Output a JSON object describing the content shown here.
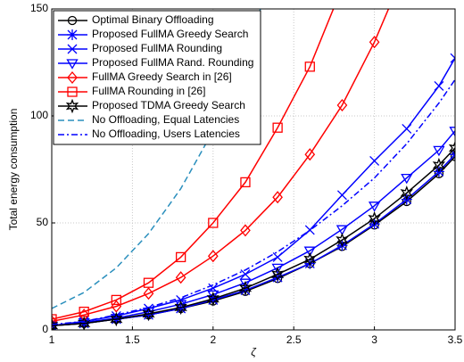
{
  "chart_data": {
    "type": "line",
    "x_label": "ζ",
    "y_label": "Total energy consumption",
    "x": [
      1,
      1.2,
      1.4,
      1.6,
      1.8,
      2,
      2.2,
      2.4,
      2.6,
      2.8,
      3,
      3.2,
      3.4,
      3.5
    ],
    "xlim": [
      1,
      3.5
    ],
    "ylim": [
      0,
      150
    ],
    "xticks": [
      1,
      1.5,
      2,
      2.5,
      3,
      3.5
    ],
    "yticks": [
      0,
      50,
      100,
      150
    ],
    "grid": true,
    "legend": "top-left",
    "series": [
      {
        "name": "Optimal Binary Offloading",
        "color": "#000000",
        "marker": "circle",
        "dash": "solid",
        "values": [
          2,
          3,
          5,
          7,
          10,
          13.5,
          18,
          24,
          31,
          39,
          49,
          60,
          73,
          81
        ]
      },
      {
        "name": "Proposed FullMA Greedy Search",
        "color": "#0000ff",
        "marker": "asterisk",
        "dash": "solid",
        "values": [
          2,
          3,
          5,
          7,
          10,
          14,
          18.5,
          24.5,
          31,
          39.5,
          49.5,
          61,
          74,
          82
        ]
      },
      {
        "name": "Proposed FullMA Rounding",
        "color": "#0000ff",
        "marker": "x",
        "dash": "solid",
        "values": [
          2,
          4,
          6.5,
          10,
          14,
          19.5,
          26,
          34,
          46.7,
          63,
          79,
          94,
          114,
          127
        ]
      },
      {
        "name": "Proposed FullMA Rand. Rounding",
        "color": "#0000ff",
        "marker": "triangle-down",
        "dash": "solid",
        "values": [
          2,
          3.5,
          5.5,
          8.5,
          12,
          16.5,
          22,
          29,
          37,
          47,
          58,
          71,
          84,
          93
        ]
      },
      {
        "name": "FullMA Greedy Search in [26]",
        "color": "#ff0000",
        "marker": "diamond",
        "dash": "solid",
        "values": [
          4,
          7,
          11,
          17,
          24.5,
          34.5,
          46.5,
          62,
          82,
          105,
          134.5,
          170,
          null,
          null
        ]
      },
      {
        "name": "FullMA Rounding in [26]",
        "color": "#ff0000",
        "marker": "square",
        "dash": "solid",
        "values": [
          5,
          8.5,
          14,
          22,
          34,
          50,
          69,
          94.5,
          123,
          160,
          null,
          null,
          null,
          null
        ]
      },
      {
        "name": "Proposed TDMA Greedy Search",
        "color": "#000000",
        "marker": "star",
        "dash": "solid",
        "values": [
          2,
          3,
          5,
          7.5,
          10.5,
          14.5,
          19.5,
          26,
          33,
          42,
          52,
          64,
          77,
          85
        ]
      },
      {
        "name": "No Offloading, Equal Latencies",
        "color": "#2a8fbd",
        "marker": "none",
        "dash": "dashed",
        "values": [
          10,
          17.5,
          29,
          45,
          66,
          93,
          128,
          175,
          null,
          null,
          null,
          null,
          null,
          null
        ]
      },
      {
        "name": "No Offloading, Users Latencies",
        "color": "#0000ff",
        "marker": "none",
        "dash": "dashdot",
        "values": [
          2.5,
          4,
          7,
          10.5,
          15,
          21,
          28,
          36.5,
          46.5,
          58,
          71,
          87,
          106,
          117
        ]
      }
    ]
  }
}
